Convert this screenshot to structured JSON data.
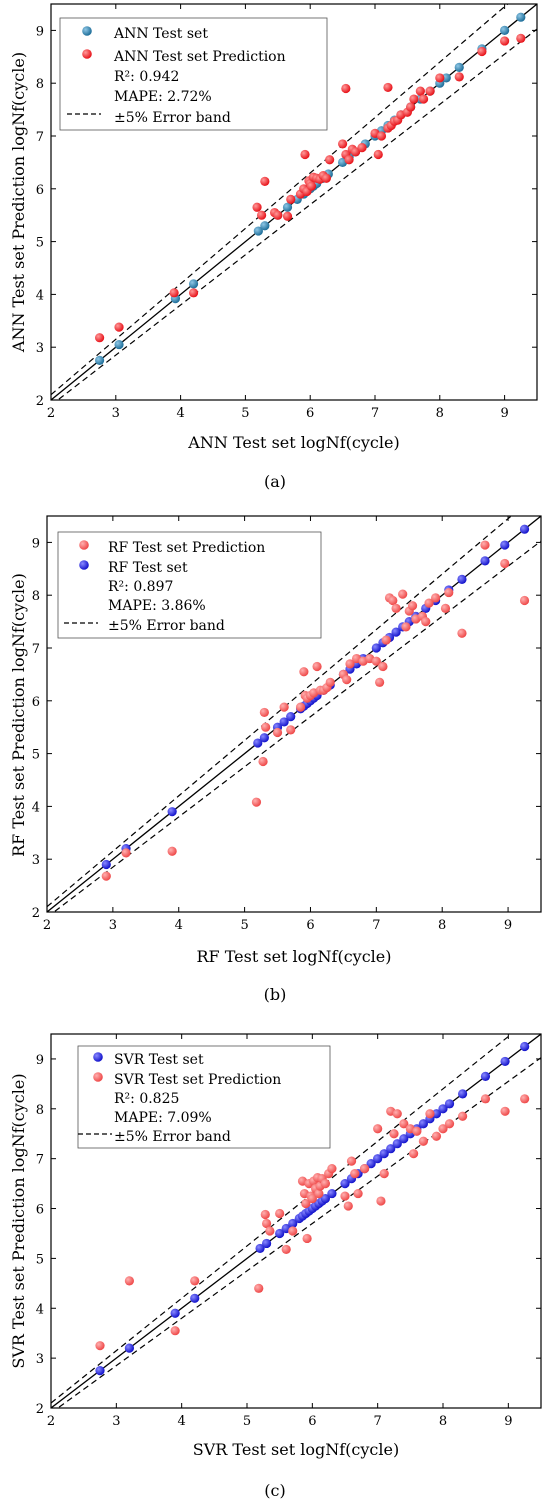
{
  "colors": {
    "teal": "#1f6f9a",
    "red": "#e8141b",
    "blue": "#1414cc",
    "pink": "#ef4a4a"
  },
  "chart_data": [
    {
      "type": "scatter",
      "panel_label": "(a)",
      "xlabel": "ANN Test set logNf(cycle)",
      "ylabel": "ANN Test set Prediction logNf(cycle)",
      "xlim": [
        2,
        9.5
      ],
      "ylim": [
        2,
        9.5
      ],
      "xticks": [
        2,
        3,
        4,
        5,
        6,
        7,
        8,
        9
      ],
      "yticks": [
        2,
        3,
        4,
        5,
        6,
        7,
        8,
        9
      ],
      "legend": {
        "entries": [
          {
            "label": "ANN Test set",
            "marker": "teal"
          },
          {
            "label": "ANN Test set Prediction",
            "marker": "red"
          },
          {
            "label": "R²: 0.942",
            "marker": "none"
          },
          {
            "label": "MAPE: 2.72%",
            "marker": "none"
          },
          {
            "label": "±5% Error band",
            "marker": "dash"
          }
        ]
      },
      "error_band": 0.05,
      "series": [
        {
          "name": "ANN Test set",
          "color": "teal",
          "x": [
            2.75,
            3.05,
            3.92,
            4.2,
            5.2,
            5.3,
            5.5,
            5.65,
            5.8,
            5.9,
            6.0,
            6.05,
            6.1,
            6.2,
            6.28,
            6.5,
            6.6,
            6.7,
            6.85,
            7.0,
            7.1,
            7.2,
            7.3,
            7.4,
            7.55,
            7.7,
            7.85,
            8.0,
            8.1,
            8.3,
            8.65,
            9.0,
            9.25
          ],
          "y": [
            2.75,
            3.05,
            3.92,
            4.2,
            5.2,
            5.3,
            5.5,
            5.65,
            5.8,
            5.9,
            6.0,
            6.05,
            6.1,
            6.2,
            6.28,
            6.5,
            6.6,
            6.7,
            6.85,
            7.0,
            7.1,
            7.2,
            7.3,
            7.4,
            7.55,
            7.7,
            7.85,
            8.0,
            8.1,
            8.3,
            8.65,
            9.0,
            9.25
          ]
        },
        {
          "name": "ANN Test set Prediction",
          "color": "red",
          "x": [
            2.75,
            3.05,
            3.9,
            4.2,
            5.18,
            5.25,
            5.3,
            5.45,
            5.5,
            5.65,
            5.7,
            5.85,
            5.9,
            5.92,
            5.95,
            5.98,
            6.0,
            6.02,
            6.05,
            6.1,
            6.15,
            6.2,
            6.25,
            6.3,
            6.5,
            6.55,
            6.6,
            6.65,
            6.7,
            6.8,
            7.0,
            7.05,
            7.1,
            7.2,
            7.25,
            7.3,
            7.35,
            7.4,
            7.5,
            7.55,
            7.6,
            7.7,
            7.75,
            7.85,
            8.0,
            8.3,
            8.65,
            9.0,
            9.25,
            6.55,
            7.2
          ],
          "y": [
            3.18,
            3.38,
            4.03,
            4.03,
            5.65,
            5.5,
            6.14,
            5.55,
            5.5,
            5.48,
            5.8,
            5.9,
            6.0,
            6.65,
            5.95,
            6.15,
            6.1,
            6.05,
            6.22,
            6.2,
            6.18,
            6.25,
            6.2,
            6.55,
            6.85,
            6.65,
            6.55,
            6.75,
            6.7,
            6.78,
            7.05,
            6.65,
            7.0,
            7.15,
            7.2,
            7.28,
            7.3,
            7.4,
            7.45,
            7.55,
            7.7,
            7.85,
            7.7,
            7.85,
            8.1,
            8.12,
            8.6,
            8.8,
            8.85,
            7.9,
            7.92
          ]
        }
      ]
    },
    {
      "type": "scatter",
      "panel_label": "(b)",
      "xlabel": "RF Test set logNf(cycle)",
      "ylabel": "RF Test set Prediction logNf(cycle)",
      "xlim": [
        2,
        9.5
      ],
      "ylim": [
        2,
        9.5
      ],
      "xticks": [
        2,
        3,
        4,
        5,
        6,
        7,
        8,
        9
      ],
      "yticks": [
        2,
        3,
        4,
        5,
        6,
        7,
        8,
        9
      ],
      "legend": {
        "entries": [
          {
            "label": "RF Test set Prediction",
            "marker": "pink"
          },
          {
            "label": "RF Test set",
            "marker": "blue"
          },
          {
            "label": "R²: 0.897",
            "marker": "none"
          },
          {
            "label": "MAPE: 3.86%",
            "marker": "none"
          },
          {
            "label": "±5% Error band",
            "marker": "dash"
          }
        ]
      },
      "error_band": 0.05,
      "series": [
        {
          "name": "RF Test set",
          "color": "blue",
          "x": [
            2.9,
            3.2,
            3.9,
            5.2,
            5.3,
            5.5,
            5.6,
            5.7,
            5.85,
            5.9,
            5.95,
            6.0,
            6.05,
            6.1,
            6.2,
            6.3,
            6.5,
            6.6,
            6.7,
            6.8,
            7.0,
            7.1,
            7.2,
            7.3,
            7.4,
            7.5,
            7.6,
            7.75,
            7.9,
            8.1,
            8.3,
            8.65,
            8.95,
            9.25
          ],
          "y": [
            2.9,
            3.2,
            3.9,
            5.2,
            5.3,
            5.5,
            5.6,
            5.7,
            5.85,
            5.9,
            5.95,
            6.0,
            6.05,
            6.1,
            6.2,
            6.3,
            6.5,
            6.6,
            6.7,
            6.8,
            7.0,
            7.1,
            7.2,
            7.3,
            7.4,
            7.5,
            7.6,
            7.75,
            7.9,
            8.1,
            8.3,
            8.65,
            8.95,
            9.25
          ]
        },
        {
          "name": "RF Test set Prediction",
          "color": "pink",
          "x": [
            2.9,
            3.2,
            3.9,
            5.18,
            5.28,
            5.3,
            5.32,
            5.5,
            5.6,
            5.7,
            5.85,
            5.9,
            5.92,
            5.95,
            6.0,
            6.05,
            6.1,
            6.15,
            6.2,
            6.25,
            6.3,
            6.5,
            6.55,
            6.6,
            6.7,
            6.8,
            6.9,
            7.0,
            7.05,
            7.1,
            7.15,
            7.2,
            7.25,
            7.3,
            7.4,
            7.45,
            7.5,
            7.55,
            7.6,
            7.7,
            7.75,
            7.8,
            7.9,
            8.05,
            8.1,
            8.3,
            8.65,
            8.95,
            9.25
          ],
          "y": [
            2.68,
            3.12,
            3.15,
            4.08,
            4.85,
            5.78,
            5.5,
            5.4,
            5.88,
            5.45,
            5.88,
            6.55,
            6.1,
            6.05,
            6.1,
            6.15,
            6.65,
            6.2,
            6.2,
            6.25,
            6.35,
            6.5,
            6.4,
            6.7,
            6.8,
            6.75,
            6.8,
            6.75,
            6.35,
            6.65,
            7.15,
            7.95,
            7.9,
            7.75,
            8.02,
            7.4,
            7.7,
            7.8,
            7.55,
            7.6,
            7.5,
            7.85,
            7.95,
            7.75,
            8.05,
            7.28,
            8.95,
            8.6,
            7.9
          ]
        }
      ]
    },
    {
      "type": "scatter",
      "panel_label": "(c)",
      "xlabel": "SVR Test set logNf(cycle)",
      "ylabel": "SVR Test set Prediction logNf(cycle)",
      "xlim": [
        2,
        9.5
      ],
      "ylim": [
        2,
        9.5
      ],
      "xticks": [
        2,
        3,
        4,
        5,
        6,
        7,
        8,
        9
      ],
      "yticks": [
        2,
        3,
        4,
        5,
        6,
        7,
        8,
        9
      ],
      "legend": {
        "entries": [
          {
            "label": "SVR Test set",
            "marker": "blue"
          },
          {
            "label": "SVR Test set Prediction",
            "marker": "pink"
          },
          {
            "label": "R²: 0.825",
            "marker": "none"
          },
          {
            "label": "MAPE: 7.09%",
            "marker": "none"
          },
          {
            "label": "±5% Error band",
            "marker": "dash"
          }
        ]
      },
      "error_band": 0.05,
      "series": [
        {
          "name": "SVR Test set",
          "color": "blue",
          "x": [
            2.75,
            3.2,
            3.9,
            4.2,
            5.2,
            5.3,
            5.5,
            5.6,
            5.7,
            5.8,
            5.85,
            5.9,
            5.95,
            6.0,
            6.05,
            6.1,
            6.15,
            6.2,
            6.3,
            6.5,
            6.6,
            6.7,
            6.8,
            6.9,
            7.0,
            7.1,
            7.2,
            7.3,
            7.4,
            7.5,
            7.6,
            7.7,
            7.8,
            7.9,
            8.0,
            8.1,
            8.3,
            8.65,
            8.95,
            9.25
          ],
          "y": [
            2.75,
            3.2,
            3.9,
            4.2,
            5.2,
            5.3,
            5.5,
            5.6,
            5.7,
            5.8,
            5.85,
            5.9,
            5.95,
            6.0,
            6.05,
            6.1,
            6.15,
            6.2,
            6.3,
            6.5,
            6.6,
            6.7,
            6.8,
            6.9,
            7.0,
            7.1,
            7.2,
            7.3,
            7.4,
            7.5,
            7.6,
            7.7,
            7.8,
            7.9,
            8.0,
            8.1,
            8.3,
            8.65,
            8.95,
            9.25
          ]
        },
        {
          "name": "SVR Test set Prediction",
          "color": "pink",
          "x": [
            2.75,
            3.2,
            3.9,
            4.2,
            5.18,
            5.28,
            5.3,
            5.35,
            5.5,
            5.6,
            5.7,
            5.85,
            5.88,
            5.9,
            5.92,
            5.95,
            5.98,
            6.0,
            6.02,
            6.05,
            6.08,
            6.1,
            6.12,
            6.15,
            6.2,
            6.25,
            6.3,
            6.5,
            6.55,
            6.6,
            6.65,
            6.7,
            6.8,
            7.0,
            7.05,
            7.1,
            7.2,
            7.25,
            7.3,
            7.4,
            7.5,
            7.55,
            7.6,
            7.7,
            7.8,
            7.9,
            8.0,
            8.1,
            8.3,
            8.65,
            8.95,
            9.25
          ],
          "y": [
            3.25,
            4.55,
            3.55,
            4.55,
            4.4,
            5.88,
            5.7,
            5.55,
            5.9,
            5.18,
            5.55,
            6.55,
            6.3,
            6.1,
            5.4,
            6.5,
            6.25,
            6.2,
            6.55,
            6.4,
            6.62,
            6.3,
            6.45,
            6.6,
            6.5,
            6.7,
            6.8,
            6.25,
            6.05,
            6.95,
            6.7,
            6.3,
            6.8,
            7.6,
            6.15,
            6.7,
            7.95,
            7.5,
            7.9,
            7.7,
            7.6,
            7.1,
            7.55,
            7.35,
            7.9,
            7.45,
            7.6,
            7.7,
            7.85,
            8.2,
            7.95,
            8.2
          ]
        }
      ]
    }
  ]
}
